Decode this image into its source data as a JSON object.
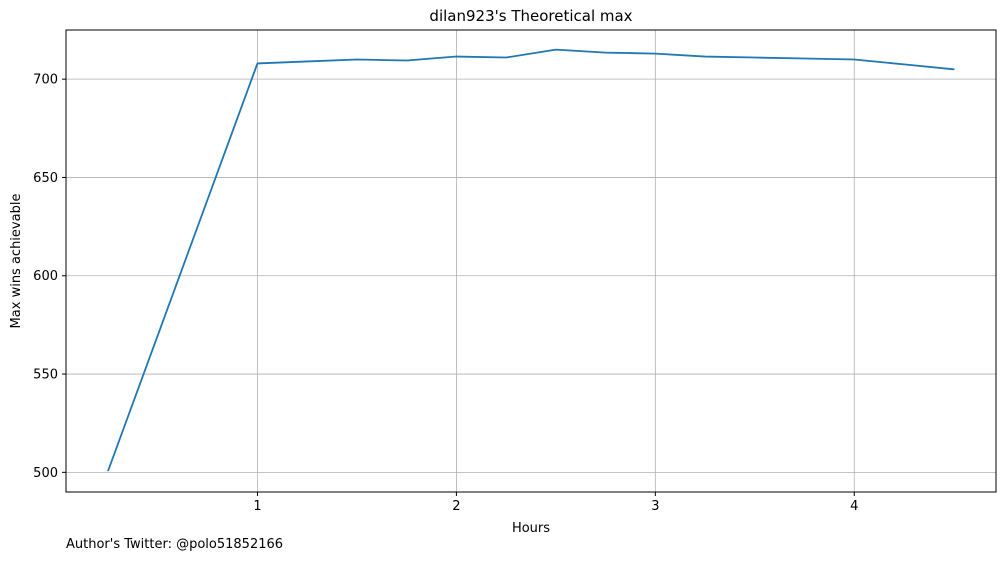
{
  "chart_data": {
    "type": "line",
    "title": "dilan923's Theoretical max",
    "xlabel": "Hours",
    "ylabel": "Max wins achievable",
    "xlim": [
      0.0375,
      4.7125
    ],
    "ylim": [
      490,
      725
    ],
    "xticks": [
      1,
      2,
      3,
      4
    ],
    "yticks": [
      500,
      550,
      600,
      650,
      700
    ],
    "grid": true,
    "series": [
      {
        "name": "Max wins achievable",
        "color": "#1f77b4",
        "x": [
          0.25,
          1.0,
          1.25,
          1.5,
          1.75,
          2.0,
          2.25,
          2.5,
          2.75,
          3.0,
          3.25,
          3.5,
          3.75,
          4.0,
          4.25,
          4.5
        ],
        "y": [
          501,
          708,
          709,
          710,
          709.5,
          711.5,
          711,
          715,
          713.5,
          713,
          711.5,
          711,
          710.5,
          710,
          707.5,
          705
        ]
      }
    ]
  },
  "footer": {
    "author_note": "Author's Twitter: @polo51852166"
  }
}
